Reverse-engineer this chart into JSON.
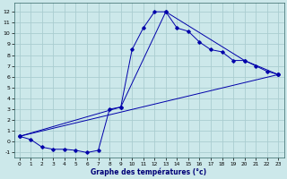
{
  "xlabel": "Graphe des températures (°c)",
  "bg_color": "#cce8ea",
  "grid_color": "#aacdd0",
  "line_color": "#0000aa",
  "xlim": [
    -0.5,
    23.5
  ],
  "ylim": [
    -1.5,
    12.8
  ],
  "xticks": [
    0,
    1,
    2,
    3,
    4,
    5,
    6,
    7,
    8,
    9,
    10,
    11,
    12,
    13,
    14,
    15,
    16,
    17,
    18,
    19,
    20,
    21,
    22,
    23
  ],
  "yticks": [
    -1,
    0,
    1,
    2,
    3,
    4,
    5,
    6,
    7,
    8,
    9,
    10,
    11,
    12
  ],
  "line1_x": [
    0,
    1,
    2,
    3,
    4,
    5,
    6,
    7,
    8,
    9,
    10,
    11,
    12,
    13,
    14,
    15,
    16,
    17,
    18,
    19,
    20,
    21,
    22,
    23
  ],
  "line1_y": [
    0.5,
    0.2,
    -0.5,
    -0.7,
    -0.7,
    -0.8,
    -1.0,
    -0.8,
    3.0,
    3.2,
    8.5,
    10.5,
    12.0,
    12.0,
    10.5,
    10.2,
    9.2,
    8.5,
    8.3,
    7.5,
    7.5,
    7.0,
    6.5,
    6.2
  ],
  "line2_x": [
    0,
    9,
    13,
    20,
    23
  ],
  "line2_y": [
    0.5,
    3.2,
    12.0,
    7.5,
    6.2
  ],
  "line3_x": [
    0,
    23
  ],
  "line3_y": [
    0.5,
    6.2
  ]
}
